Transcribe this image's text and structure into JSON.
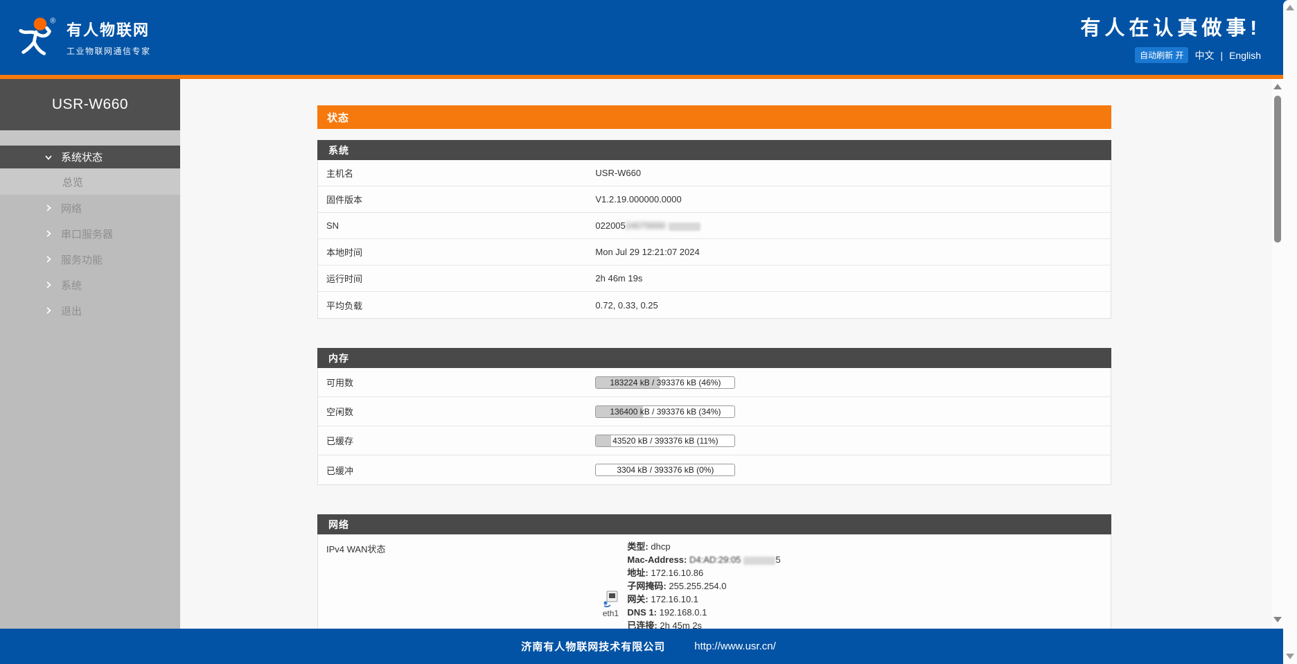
{
  "header": {
    "brand": {
      "name": "有人物联网",
      "tagline": "工业物联网通信专家",
      "registered_mark": "®"
    },
    "slogan": "有人在认真做事!",
    "auto_refresh_label": "自动刷新 开",
    "lang_zh": "中文",
    "lang_divider": "|",
    "lang_en": "English"
  },
  "sidebar": {
    "device_title": "USR-W660",
    "menu": [
      {
        "label": "系统状态",
        "state": "expanded"
      },
      {
        "label": "总览",
        "state": "active"
      },
      {
        "label": "网络",
        "state": "collapsed"
      },
      {
        "label": "串口服务器",
        "state": "collapsed"
      },
      {
        "label": "服务功能",
        "state": "collapsed"
      },
      {
        "label": "系统",
        "state": "collapsed"
      },
      {
        "label": "退出",
        "state": "collapsed"
      }
    ]
  },
  "page": {
    "banner_title": "状态"
  },
  "system_section": {
    "title": "系统",
    "rows": [
      {
        "label": "主机名",
        "value": "USR-W660"
      },
      {
        "label": "固件版本",
        "value": "V1.2.19.000000.0000"
      },
      {
        "label": "SN",
        "value_prefix": "022005",
        "value_blurred": "24070000"
      },
      {
        "label": "本地时间",
        "value": "Mon Jul 29 12:21:07 2024"
      },
      {
        "label": "运行时间",
        "value": "2h 46m 19s"
      },
      {
        "label": "平均负载",
        "value": "0.72, 0.33, 0.25"
      }
    ]
  },
  "memory_section": {
    "title": "内存",
    "rows": [
      {
        "label": "可用数",
        "text": "183224 kB / 393376 kB (46%)",
        "percent": 46
      },
      {
        "label": "空闲数",
        "text": "136400 kB / 393376 kB (34%)",
        "percent": 34
      },
      {
        "label": "已缓存",
        "text": "43520 kB / 393376 kB (11%)",
        "percent": 11
      },
      {
        "label": "已缓冲",
        "text": "3304 kB / 393376 kB (0%)",
        "percent": 0
      }
    ]
  },
  "network_section": {
    "title": "网络",
    "wan": {
      "label": "IPv4 WAN状态",
      "interface": "eth1",
      "type_label": "类型:",
      "type_value": "dhcp",
      "mac_label": "Mac-Address:",
      "mac_prefix": "D4:AD:29:05",
      "mac_suffix": "5",
      "addr_label": "地址:",
      "addr_value": "172.16.10.86",
      "mask_label": "子网掩码:",
      "mask_value": "255.255.254.0",
      "gw_label": "网关:",
      "gw_value": "172.16.10.1",
      "dns_label": "DNS 1:",
      "dns_value": "192.168.0.1",
      "conn_label": "已连接:",
      "conn_value": "2h 45m 2s"
    }
  },
  "footer": {
    "company": "济南有人物联网技术有限公司",
    "url": "http://www.usr.cn/"
  },
  "colors": {
    "brand_blue": "#0253a5",
    "accent_orange": "#f5790d",
    "section_header_gray": "#494949",
    "sidebar_gray": "#bcbcbc",
    "autorefresh_blue": "#1a78d2"
  }
}
